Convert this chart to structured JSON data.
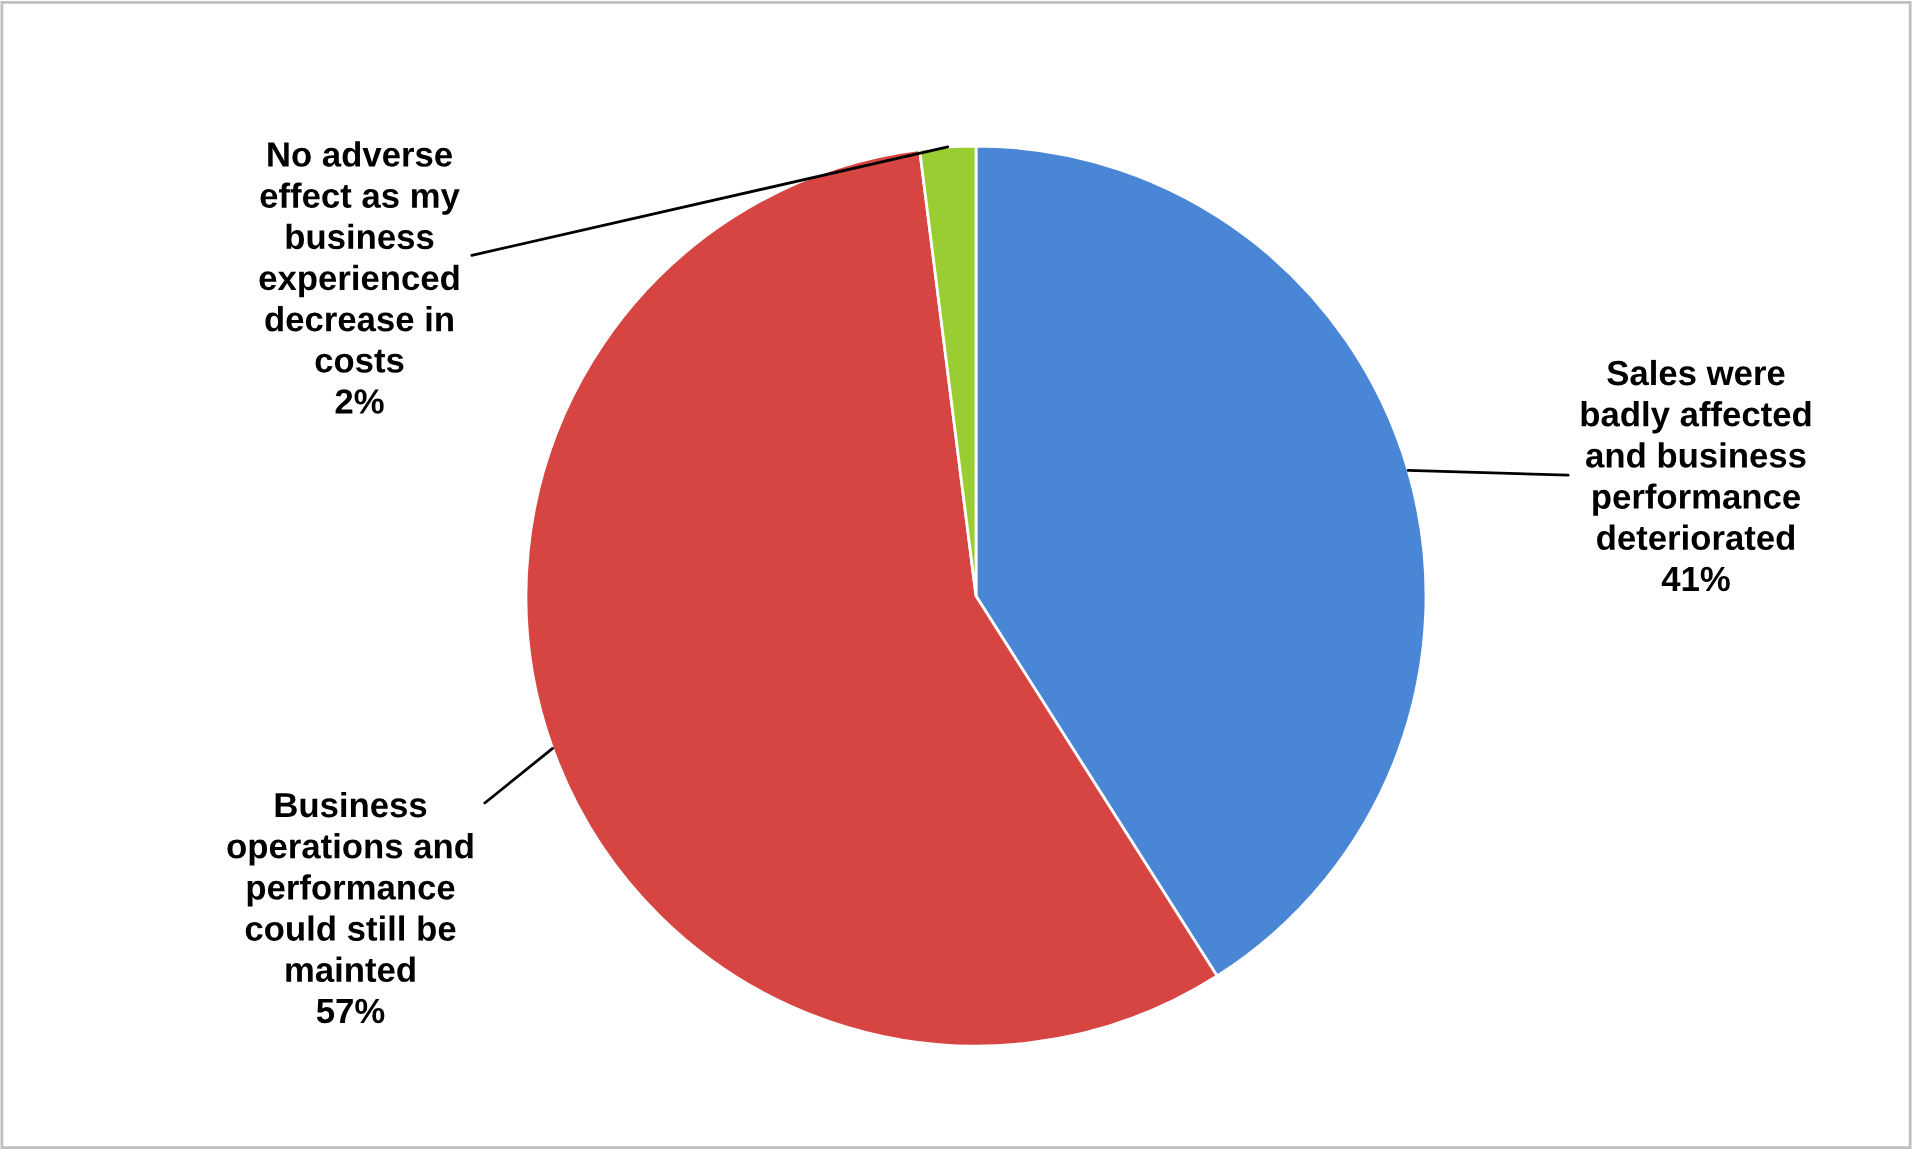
{
  "chart_data": {
    "type": "pie",
    "categories": [
      "Sales were\nbadly affected\nand business\nperformance\ndeteriorated",
      "Business\noperations and\nperformance\ncould still be\nmainted",
      "No adverse\neffect as my\nbusiness\nexperienced\ndecrease in\ncosts"
    ],
    "values": [
      41,
      57,
      2
    ],
    "value_labels": [
      "41%",
      "57%",
      "2%"
    ],
    "colors": [
      "#4a86d6",
      "#d64541",
      "#9acd32"
    ],
    "legend": false
  }
}
